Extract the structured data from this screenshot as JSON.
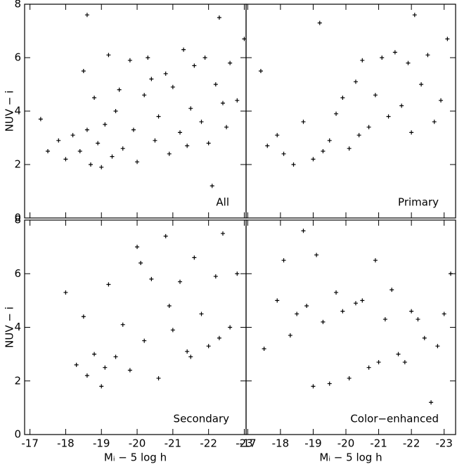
{
  "chart_data": [
    {
      "type": "scatter",
      "label": "All",
      "ylabel": "NUV − i",
      "x": [
        -17.3,
        -17.5,
        -17.8,
        -18.0,
        -18.2,
        -18.4,
        -18.5,
        -18.6,
        -18.7,
        -18.8,
        -18.9,
        -19.0,
        -19.1,
        -19.2,
        -19.3,
        -19.5,
        -19.6,
        -19.8,
        -19.9,
        -20.0,
        -20.2,
        -20.3,
        -20.5,
        -20.6,
        -20.8,
        -20.9,
        -21.0,
        -21.2,
        -21.3,
        -21.5,
        -21.6,
        -21.8,
        -21.9,
        -22.0,
        -22.2,
        -22.3,
        -22.5,
        -22.6,
        -22.8,
        -23.0,
        -18.6,
        -19.4,
        -20.4,
        -21.4,
        -22.4,
        -22.1
      ],
      "y": [
        3.7,
        2.5,
        2.9,
        2.2,
        3.1,
        2.5,
        5.5,
        7.6,
        2.0,
        4.5,
        2.8,
        1.9,
        3.5,
        6.1,
        2.3,
        4.8,
        2.6,
        5.9,
        3.3,
        2.1,
        4.6,
        6.0,
        2.9,
        3.8,
        5.4,
        2.4,
        4.9,
        3.2,
        6.3,
        4.1,
        5.7,
        3.6,
        6.0,
        2.8,
        5.0,
        7.5,
        3.4,
        5.8,
        4.4,
        6.7,
        3.3,
        4.0,
        5.2,
        2.7,
        4.3,
        1.2
      ],
      "xlim": [
        -16.85,
        -23.05
      ],
      "ylim": [
        0,
        8
      ],
      "xticks": [
        -17,
        -18,
        -19,
        -20,
        -21,
        -22,
        -23
      ],
      "yticks": [
        0,
        2,
        4,
        6,
        8
      ]
    },
    {
      "type": "scatter",
      "label": "Primary",
      "x": [
        -17.4,
        -17.6,
        -17.9,
        -18.1,
        -18.4,
        -18.7,
        -19.0,
        -19.2,
        -19.5,
        -19.7,
        -19.9,
        -20.1,
        -20.3,
        -20.5,
        -20.7,
        -20.9,
        -21.1,
        -21.3,
        -21.5,
        -21.7,
        -21.9,
        -22.1,
        -22.3,
        -22.5,
        -22.7,
        -22.9,
        -23.1,
        -19.3,
        -20.4,
        -22.0
      ],
      "y": [
        5.5,
        2.7,
        3.1,
        2.4,
        2.0,
        3.6,
        2.2,
        7.3,
        2.9,
        3.9,
        4.5,
        2.6,
        5.1,
        5.9,
        3.4,
        4.6,
        6.0,
        3.8,
        6.2,
        4.2,
        5.8,
        7.6,
        5.0,
        6.1,
        3.6,
        4.4,
        6.7,
        2.5,
        3.1,
        3.2
      ],
      "xlim": [
        -16.95,
        -23.35
      ],
      "ylim": [
        0,
        8
      ],
      "xticks": [
        -17,
        -18,
        -19,
        -20,
        -21,
        -22,
        -23
      ],
      "yticks": [
        0,
        2,
        4,
        6,
        8
      ]
    },
    {
      "type": "scatter",
      "label": "Secondary",
      "ylabel": "NUV − i",
      "xlabel": "Mᵢ − 5 log h",
      "x": [
        -18.0,
        -18.3,
        -18.5,
        -18.6,
        -18.8,
        -19.0,
        -19.2,
        -19.4,
        -19.6,
        -19.8,
        -20.0,
        -20.2,
        -20.4,
        -20.6,
        -20.8,
        -21.0,
        -21.2,
        -21.4,
        -21.6,
        -21.8,
        -22.0,
        -22.2,
        -22.4,
        -22.6,
        -22.8,
        -19.1,
        -20.9,
        -21.5,
        -22.3,
        -20.1
      ],
      "y": [
        5.3,
        2.6,
        4.4,
        2.2,
        3.0,
        1.8,
        5.6,
        2.9,
        4.1,
        2.4,
        7.0,
        3.5,
        5.8,
        2.1,
        7.4,
        3.9,
        5.7,
        3.1,
        6.6,
        4.5,
        3.3,
        5.9,
        7.5,
        4.0,
        6.0,
        2.5,
        4.8,
        2.9,
        3.6,
        6.4
      ],
      "xlim": [
        -16.85,
        -23.05
      ],
      "ylim": [
        0,
        8
      ],
      "xticks": [
        -17,
        -18,
        -19,
        -20,
        -21,
        -22,
        -23
      ],
      "yticks": [
        0,
        2,
        4,
        6,
        8
      ]
    },
    {
      "type": "scatter",
      "label": "Color−enhanced",
      "xlabel": "Mᵢ − 5 log h",
      "x": [
        -17.5,
        -17.9,
        -18.1,
        -18.3,
        -18.5,
        -18.7,
        -18.8,
        -19.0,
        -19.1,
        -19.3,
        -19.5,
        -19.7,
        -19.9,
        -20.1,
        -20.3,
        -20.5,
        -20.7,
        -20.9,
        -21.0,
        -21.2,
        -21.4,
        -21.6,
        -21.8,
        -22.0,
        -22.2,
        -22.4,
        -22.6,
        -22.8,
        -23.0,
        -23.2
      ],
      "y": [
        3.2,
        5.0,
        6.5,
        3.7,
        4.5,
        7.6,
        4.8,
        1.8,
        6.7,
        4.2,
        1.9,
        5.3,
        4.6,
        2.1,
        4.9,
        5.0,
        2.5,
        6.5,
        2.7,
        4.3,
        5.4,
        3.0,
        2.7,
        4.6,
        4.3,
        3.6,
        1.2,
        3.3,
        4.5,
        6.0
      ],
      "xlim": [
        -16.95,
        -23.35
      ],
      "ylim": [
        0,
        8
      ],
      "xticks": [
        -17,
        -18,
        -19,
        -20,
        -21,
        -22,
        -23
      ],
      "yticks": [
        0,
        2,
        4,
        6,
        8
      ]
    }
  ]
}
